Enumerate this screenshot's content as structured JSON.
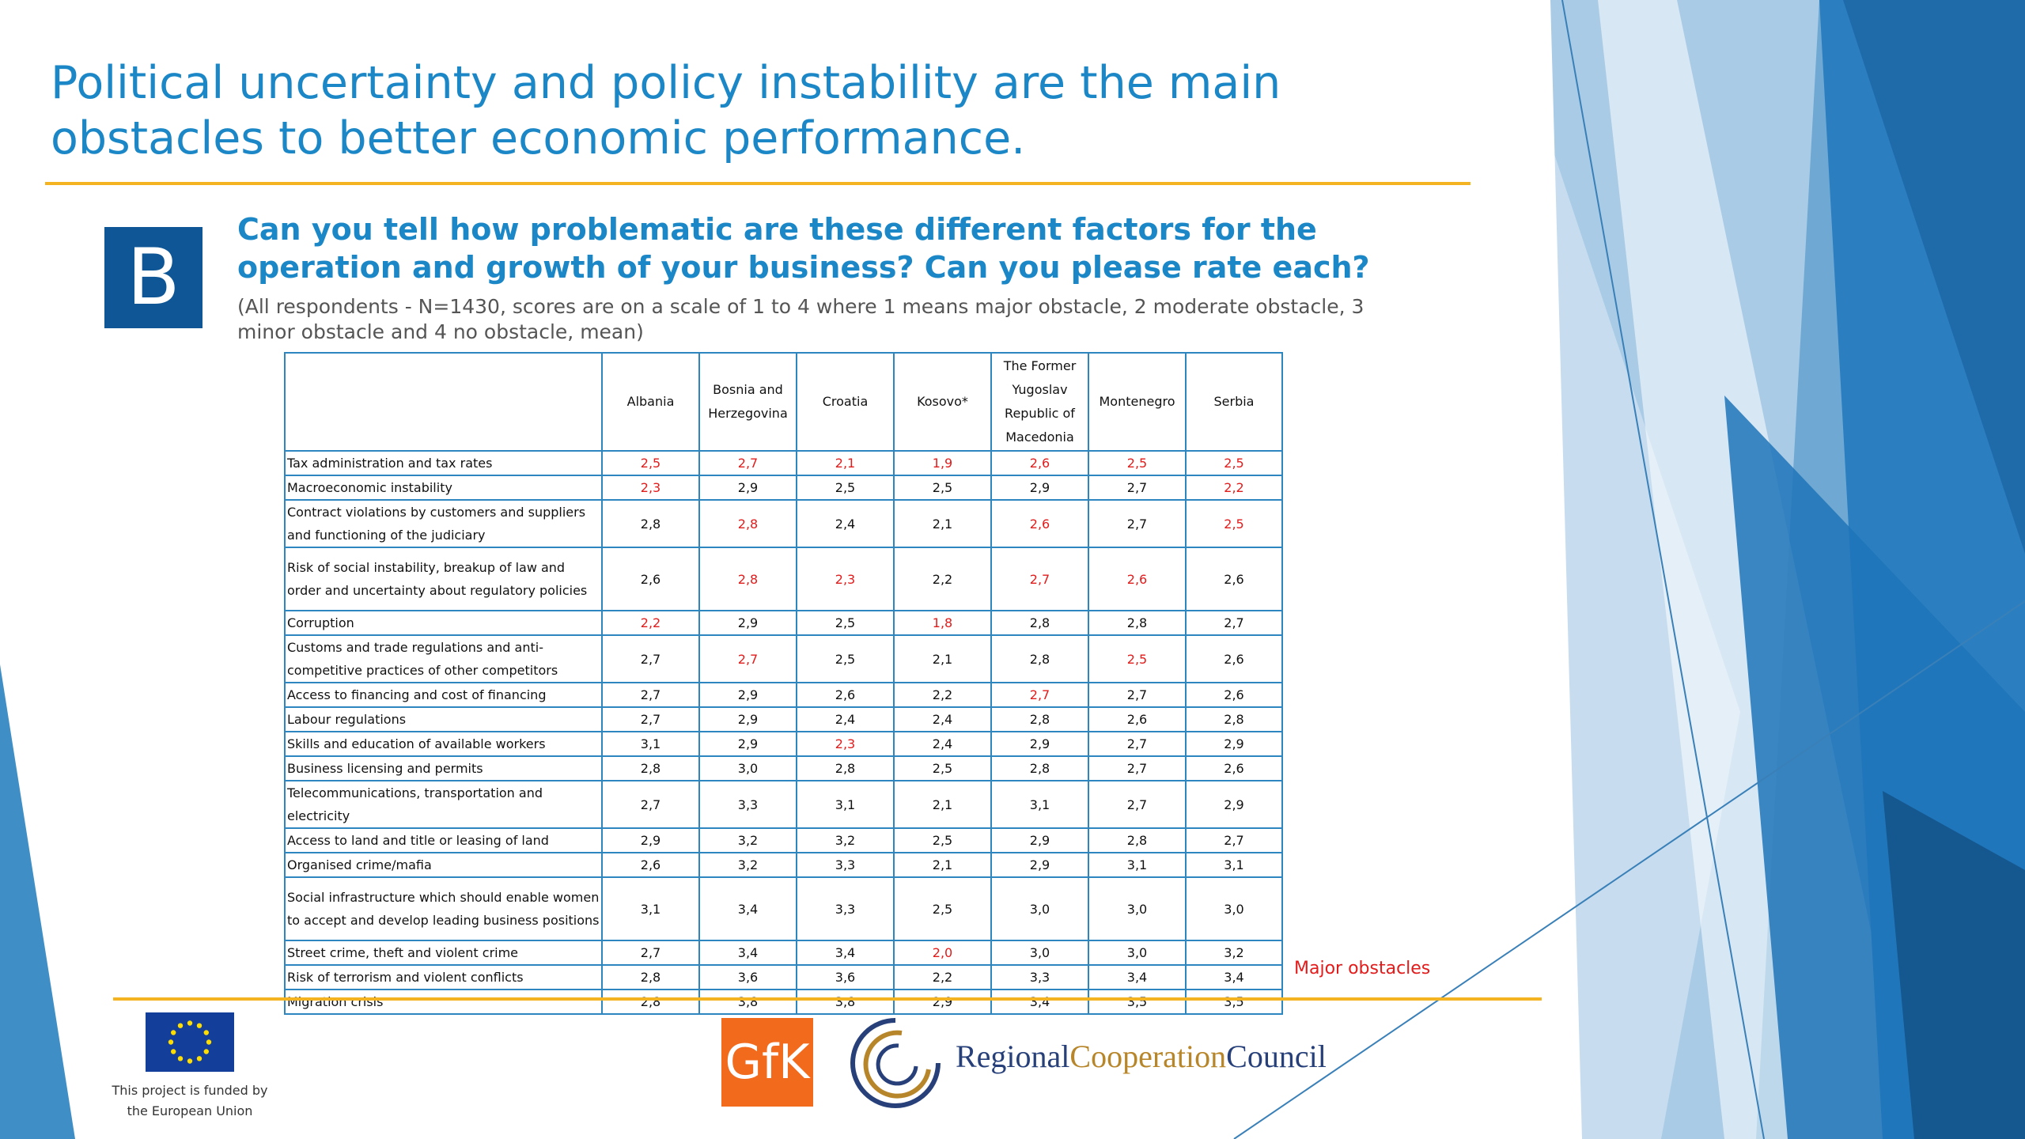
{
  "slide": {
    "title": "Political uncertainty and policy instability are the main obstacles to better economic performance.",
    "section_badge": "B",
    "question": "Can you tell how problematic are these different factors for the operation and growth of your business? Can you please rate each?",
    "note": "(All respondents - N=1430, scores are on a scale of 1 to 4 where 1 means major obstacle, 2 moderate obstacle, 3 minor obstacle and 4 no obstacle, mean)",
    "legend": "Major obstacles"
  },
  "colors": {
    "accent_blue": "#1b87c6",
    "badge_blue": "#0e5696",
    "rule_gold": "#f4b320",
    "major_obstacle_red": "#e21b1b"
  },
  "table": {
    "columns": [
      "Albania",
      "Bosnia and Herzegovina",
      "Croatia",
      "Kosovo*",
      "The Former Yugoslav Republic of Macedonia",
      "Montenegro",
      "Serbia"
    ],
    "rows": [
      {
        "factor": "Tax administration and tax rates",
        "values": [
          "2,5",
          "2,7",
          "2,1",
          "1,9",
          "2,6",
          "2,5",
          "2,5"
        ],
        "major": [
          true,
          true,
          true,
          true,
          true,
          true,
          true
        ]
      },
      {
        "factor": "Macroeconomic instability",
        "values": [
          "2,3",
          "2,9",
          "2,5",
          "2,5",
          "2,9",
          "2,7",
          "2,2"
        ],
        "major": [
          true,
          false,
          false,
          false,
          false,
          false,
          true
        ]
      },
      {
        "factor": "Contract violations by customers and suppliers and functioning of the judiciary",
        "values": [
          "2,8",
          "2,8",
          "2,4",
          "2,1",
          "2,6",
          "2,7",
          "2,5"
        ],
        "major": [
          false,
          true,
          false,
          false,
          true,
          false,
          true
        ]
      },
      {
        "factor": "Risk of social instability, breakup of law and order and uncertainty about regulatory policies",
        "values": [
          "2,6",
          "2,8",
          "2,3",
          "2,2",
          "2,7",
          "2,6",
          "2,6"
        ],
        "major": [
          false,
          true,
          true,
          false,
          true,
          true,
          false
        ]
      },
      {
        "factor": "Corruption",
        "values": [
          "2,2",
          "2,9",
          "2,5",
          "1,8",
          "2,8",
          "2,8",
          "2,7"
        ],
        "major": [
          true,
          false,
          false,
          true,
          false,
          false,
          false
        ]
      },
      {
        "factor": "Customs and trade regulations and anti-competitive practices of other competitors",
        "values": [
          "2,7",
          "2,7",
          "2,5",
          "2,1",
          "2,8",
          "2,5",
          "2,6"
        ],
        "major": [
          false,
          true,
          false,
          false,
          false,
          true,
          false
        ]
      },
      {
        "factor": "Access to financing and cost of financing",
        "values": [
          "2,7",
          "2,9",
          "2,6",
          "2,2",
          "2,7",
          "2,7",
          "2,6"
        ],
        "major": [
          false,
          false,
          false,
          false,
          true,
          false,
          false
        ]
      },
      {
        "factor": "Labour regulations",
        "values": [
          "2,7",
          "2,9",
          "2,4",
          "2,4",
          "2,8",
          "2,6",
          "2,8"
        ],
        "major": [
          false,
          false,
          false,
          false,
          false,
          false,
          false
        ]
      },
      {
        "factor": "Skills and education of available workers",
        "values": [
          "3,1",
          "2,9",
          "2,3",
          "2,4",
          "2,9",
          "2,7",
          "2,9"
        ],
        "major": [
          false,
          false,
          true,
          false,
          false,
          false,
          false
        ]
      },
      {
        "factor": "Business licensing and permits",
        "values": [
          "2,8",
          "3,0",
          "2,8",
          "2,5",
          "2,8",
          "2,7",
          "2,6"
        ],
        "major": [
          false,
          false,
          false,
          false,
          false,
          false,
          false
        ]
      },
      {
        "factor": "Telecommunications, transportation and electricity",
        "values": [
          "2,7",
          "3,3",
          "3,1",
          "2,1",
          "3,1",
          "2,7",
          "2,9"
        ],
        "major": [
          false,
          false,
          false,
          false,
          false,
          false,
          false
        ]
      },
      {
        "factor": "Access to land and title or leasing of land",
        "values": [
          "2,9",
          "3,2",
          "3,2",
          "2,5",
          "2,9",
          "2,8",
          "2,7"
        ],
        "major": [
          false,
          false,
          false,
          false,
          false,
          false,
          false
        ]
      },
      {
        "factor": "Organised crime/mafia",
        "values": [
          "2,6",
          "3,2",
          "3,3",
          "2,1",
          "2,9",
          "3,1",
          "3,1"
        ],
        "major": [
          false,
          false,
          false,
          false,
          false,
          false,
          false
        ]
      },
      {
        "factor": "Social infrastructure which should enable women to accept and develop leading business positions",
        "values": [
          "3,1",
          "3,4",
          "3,3",
          "2,5",
          "3,0",
          "3,0",
          "3,0"
        ],
        "major": [
          false,
          false,
          false,
          false,
          false,
          false,
          false
        ]
      },
      {
        "factor": "Street crime, theft and violent crime",
        "values": [
          "2,7",
          "3,4",
          "3,4",
          "2,0",
          "3,0",
          "3,0",
          "3,2"
        ],
        "major": [
          false,
          false,
          false,
          true,
          false,
          false,
          false
        ]
      },
      {
        "factor": "Risk of terrorism and violent conflicts",
        "values": [
          "2,8",
          "3,6",
          "3,6",
          "2,2",
          "3,3",
          "3,4",
          "3,4"
        ],
        "major": [
          false,
          false,
          false,
          false,
          false,
          false,
          false
        ]
      },
      {
        "factor": "Migration crisis",
        "values": [
          "2,8",
          "3,8",
          "3,8",
          "2,9",
          "3,4",
          "3,5",
          "3,5"
        ],
        "major": [
          false,
          false,
          false,
          false,
          false,
          false,
          false
        ]
      }
    ]
  },
  "footer": {
    "eu_caption": "This project is funded by the European Union",
    "gfk_logo": "GfK",
    "rcc_name_part1": "Regional",
    "rcc_name_part2": "Cooperation",
    "rcc_name_part3": "Council"
  }
}
